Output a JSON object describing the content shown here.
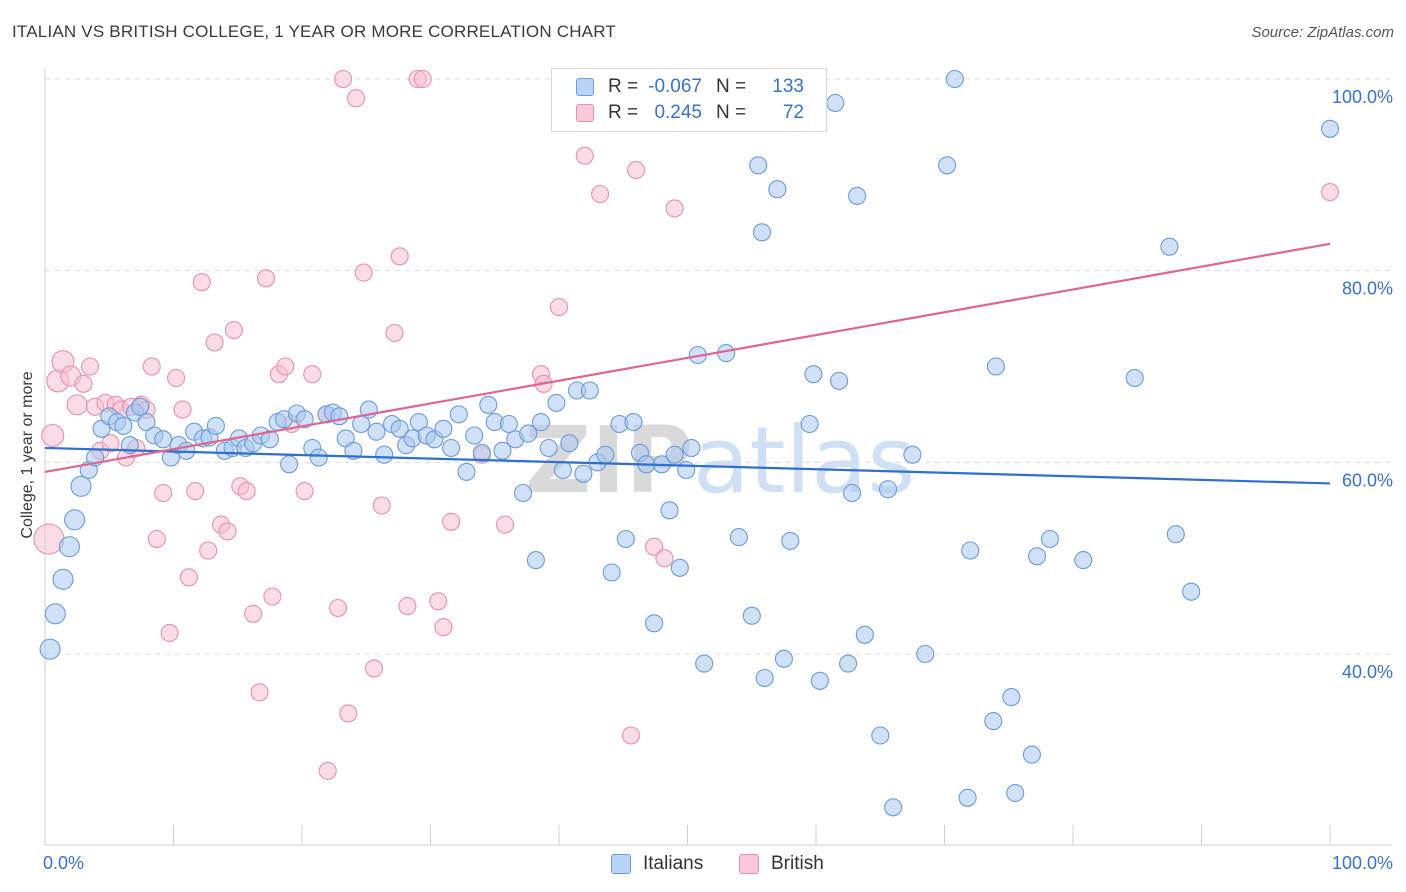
{
  "title": "ITALIAN VS BRITISH COLLEGE, 1 YEAR OR MORE CORRELATION CHART",
  "source": "Source: ZipAtlas.com",
  "watermark": "ZIPatlas",
  "legend": {
    "italians": {
      "r_label": "R =",
      "r_value": "-0.067",
      "n_label": "N =",
      "n_value": "133"
    },
    "british": {
      "r_label": "R =",
      "r_value": "0.245",
      "n_label": "N =",
      "n_value": "72"
    }
  },
  "bottom_legend": {
    "italians": "Italians",
    "british": "British"
  },
  "colors": {
    "blue_fill": "#a9c8f0",
    "blue_stroke": "#6a9bdc",
    "blue_line": "#2f6fce",
    "pink_fill": "#f6bfd1",
    "pink_stroke": "#e98fae",
    "pink_line": "#e0648f",
    "axis_label": "#3a72c9",
    "grid": "#dcdcdc"
  },
  "chart_data": {
    "type": "scatter",
    "title": "ITALIAN VS BRITISH COLLEGE, 1 YEAR OR MORE CORRELATION CHART",
    "xlabel": "",
    "ylabel": "College, 1 year or more",
    "x_tick_labels": [
      "0.0%",
      "100.0%"
    ],
    "y_tick_labels": [
      "40.0%",
      "60.0%",
      "80.0%",
      "100.0%"
    ],
    "xlim": [
      0,
      100
    ],
    "ylim": [
      20,
      104
    ],
    "grid": true,
    "legend_position": "top-center",
    "series": [
      {
        "name": "Italians",
        "color": "#6a9bdc",
        "trend": {
          "x": [
            0,
            100
          ],
          "y": [
            61.5,
            57.8
          ]
        },
        "points": [
          [
            0.4,
            40.5
          ],
          [
            0.8,
            44.2
          ],
          [
            1.4,
            47.8
          ],
          [
            1.9,
            51.2
          ],
          [
            2.3,
            54.0
          ],
          [
            2.8,
            57.5
          ],
          [
            3.4,
            59.2
          ],
          [
            3.9,
            60.5
          ],
          [
            4.4,
            63.5
          ],
          [
            5.0,
            64.8
          ],
          [
            5.6,
            64.2
          ],
          [
            6.1,
            63.8
          ],
          [
            6.6,
            61.8
          ],
          [
            7.0,
            65.2
          ],
          [
            7.4,
            65.8
          ],
          [
            7.9,
            64.2
          ],
          [
            8.5,
            62.8
          ],
          [
            9.2,
            62.4
          ],
          [
            9.8,
            60.5
          ],
          [
            10.4,
            61.8
          ],
          [
            11.0,
            61.2
          ],
          [
            11.6,
            63.2
          ],
          [
            12.3,
            62.5
          ],
          [
            12.8,
            62.6
          ],
          [
            13.3,
            63.8
          ],
          [
            14.0,
            61.2
          ],
          [
            14.6,
            61.5
          ],
          [
            15.1,
            62.5
          ],
          [
            15.6,
            61.5
          ],
          [
            16.2,
            62.0
          ],
          [
            16.8,
            62.8
          ],
          [
            17.5,
            62.4
          ],
          [
            18.1,
            64.2
          ],
          [
            18.6,
            64.5
          ],
          [
            19.0,
            59.8
          ],
          [
            19.6,
            65.1
          ],
          [
            20.2,
            64.5
          ],
          [
            20.8,
            61.5
          ],
          [
            21.3,
            60.5
          ],
          [
            21.9,
            65.0
          ],
          [
            22.4,
            65.2
          ],
          [
            22.9,
            64.8
          ],
          [
            23.4,
            62.5
          ],
          [
            24.0,
            61.2
          ],
          [
            24.6,
            64.0
          ],
          [
            25.2,
            65.5
          ],
          [
            25.8,
            63.2
          ],
          [
            26.4,
            60.8
          ],
          [
            27.0,
            64.0
          ],
          [
            27.6,
            63.5
          ],
          [
            28.1,
            61.8
          ],
          [
            28.6,
            62.5
          ],
          [
            29.1,
            64.2
          ],
          [
            29.7,
            62.8
          ],
          [
            30.3,
            62.4
          ],
          [
            31.0,
            63.5
          ],
          [
            31.6,
            61.5
          ],
          [
            32.2,
            65.0
          ],
          [
            32.8,
            59.0
          ],
          [
            33.4,
            62.8
          ],
          [
            34.0,
            61.0
          ],
          [
            34.5,
            66.0
          ],
          [
            35.0,
            64.2
          ],
          [
            35.6,
            61.2
          ],
          [
            36.1,
            64.0
          ],
          [
            36.6,
            62.4
          ],
          [
            37.2,
            56.8
          ],
          [
            37.6,
            63.0
          ],
          [
            38.2,
            49.8
          ],
          [
            38.6,
            64.2
          ],
          [
            39.2,
            61.5
          ],
          [
            39.8,
            66.2
          ],
          [
            40.3,
            59.2
          ],
          [
            40.8,
            62.0
          ],
          [
            41.4,
            67.5
          ],
          [
            41.9,
            58.8
          ],
          [
            42.4,
            67.5
          ],
          [
            43.0,
            60.0
          ],
          [
            43.6,
            60.8
          ],
          [
            44.1,
            48.5
          ],
          [
            44.7,
            64.0
          ],
          [
            45.2,
            52.0
          ],
          [
            45.8,
            64.2
          ],
          [
            46.3,
            61.0
          ],
          [
            46.8,
            59.8
          ],
          [
            47.4,
            43.2
          ],
          [
            48.0,
            59.8
          ],
          [
            48.6,
            55.0
          ],
          [
            49.0,
            60.8
          ],
          [
            49.4,
            49.0
          ],
          [
            49.9,
            59.2
          ],
          [
            50.3,
            61.5
          ],
          [
            50.8,
            71.2
          ],
          [
            51.3,
            39.0
          ],
          [
            53.0,
            71.4
          ],
          [
            54.0,
            52.2
          ],
          [
            55.0,
            44.0
          ],
          [
            55.5,
            91.0
          ],
          [
            55.8,
            84.0
          ],
          [
            56.0,
            37.5
          ],
          [
            57.0,
            88.5
          ],
          [
            57.5,
            39.5
          ],
          [
            58.0,
            51.8
          ],
          [
            59.5,
            64.0
          ],
          [
            59.8,
            69.2
          ],
          [
            60.3,
            37.2
          ],
          [
            61.5,
            97.5
          ],
          [
            61.8,
            68.5
          ],
          [
            62.5,
            39.0
          ],
          [
            62.8,
            56.8
          ],
          [
            63.2,
            87.8
          ],
          [
            63.8,
            42.0
          ],
          [
            65.0,
            31.5
          ],
          [
            65.6,
            57.2
          ],
          [
            66.0,
            24.0
          ],
          [
            67.5,
            60.8
          ],
          [
            68.5,
            40.0
          ],
          [
            70.2,
            91.0
          ],
          [
            70.8,
            100.0
          ],
          [
            71.8,
            25.0
          ],
          [
            72.0,
            50.8
          ],
          [
            73.8,
            33.0
          ],
          [
            74.0,
            70.0
          ],
          [
            75.2,
            35.5
          ],
          [
            75.5,
            25.5
          ],
          [
            76.8,
            29.5
          ],
          [
            77.2,
            50.2
          ],
          [
            78.2,
            52.0
          ],
          [
            80.8,
            49.8
          ],
          [
            84.8,
            68.8
          ],
          [
            87.5,
            82.5
          ],
          [
            88.0,
            52.5
          ],
          [
            89.2,
            46.5
          ],
          [
            100.0,
            94.8
          ]
        ]
      },
      {
        "name": "British",
        "color": "#e98fae",
        "trend": {
          "x": [
            0,
            100
          ],
          "y": [
            59.0,
            82.8
          ]
        },
        "points": [
          [
            0.3,
            52.0
          ],
          [
            0.6,
            62.8
          ],
          [
            1.0,
            68.5
          ],
          [
            1.4,
            70.5
          ],
          [
            2.0,
            69.0
          ],
          [
            2.5,
            66.0
          ],
          [
            3.0,
            68.2
          ],
          [
            3.5,
            70.0
          ],
          [
            3.9,
            65.8
          ],
          [
            4.3,
            61.2
          ],
          [
            4.7,
            66.2
          ],
          [
            5.1,
            62.0
          ],
          [
            5.5,
            66.0
          ],
          [
            5.9,
            65.5
          ],
          [
            6.3,
            60.5
          ],
          [
            6.7,
            65.8
          ],
          [
            7.1,
            61.5
          ],
          [
            7.5,
            66.0
          ],
          [
            7.9,
            65.5
          ],
          [
            8.3,
            70.0
          ],
          [
            8.7,
            52.0
          ],
          [
            9.2,
            56.8
          ],
          [
            9.7,
            42.2
          ],
          [
            10.2,
            68.8
          ],
          [
            10.7,
            65.5
          ],
          [
            11.2,
            48.0
          ],
          [
            11.7,
            57.0
          ],
          [
            12.2,
            78.8
          ],
          [
            12.7,
            50.8
          ],
          [
            13.2,
            72.5
          ],
          [
            13.7,
            53.5
          ],
          [
            14.2,
            52.8
          ],
          [
            14.7,
            73.8
          ],
          [
            15.2,
            57.5
          ],
          [
            15.7,
            57.0
          ],
          [
            16.2,
            44.2
          ],
          [
            16.7,
            36.0
          ],
          [
            17.2,
            79.2
          ],
          [
            17.7,
            46.0
          ],
          [
            18.2,
            69.2
          ],
          [
            18.7,
            70.0
          ],
          [
            19.2,
            64.0
          ],
          [
            20.2,
            57.0
          ],
          [
            20.8,
            69.2
          ],
          [
            21.9,
            65.0
          ],
          [
            22.0,
            27.8
          ],
          [
            22.8,
            44.8
          ],
          [
            23.2,
            100.0
          ],
          [
            23.6,
            33.8
          ],
          [
            24.2,
            98.0
          ],
          [
            24.8,
            79.8
          ],
          [
            25.6,
            38.5
          ],
          [
            26.2,
            55.5
          ],
          [
            27.2,
            73.5
          ],
          [
            27.6,
            81.5
          ],
          [
            28.2,
            45.0
          ],
          [
            29.0,
            100.0
          ],
          [
            29.4,
            100.0
          ],
          [
            30.6,
            45.5
          ],
          [
            31.0,
            42.8
          ],
          [
            31.6,
            53.8
          ],
          [
            34.0,
            60.8
          ],
          [
            35.8,
            53.5
          ],
          [
            38.6,
            69.2
          ],
          [
            38.8,
            68.2
          ],
          [
            40.0,
            76.2
          ],
          [
            42.0,
            92.0
          ],
          [
            43.2,
            88.0
          ],
          [
            45.6,
            31.5
          ],
          [
            46.0,
            90.5
          ],
          [
            47.4,
            51.2
          ],
          [
            48.2,
            50.0
          ],
          [
            49.0,
            86.5
          ],
          [
            100.0,
            88.2
          ]
        ]
      }
    ]
  }
}
